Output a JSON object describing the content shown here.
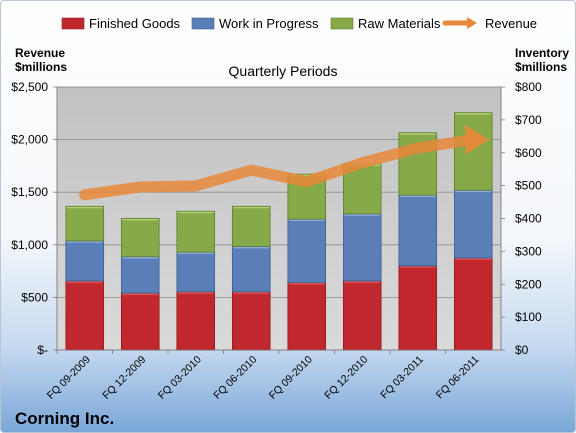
{
  "company": "Corning Inc.",
  "chart_data": {
    "type": "bar",
    "subtype": "stacked bar with line overlay",
    "title": "Quarterly Periods",
    "ylabel_left": [
      "Revenue",
      "$millions"
    ],
    "ylabel_right": [
      "Inventory",
      "$millions"
    ],
    "ylim_left": [
      0,
      2500
    ],
    "ylim_right": [
      0,
      800
    ],
    "yticks_left": [
      "$-",
      "$500",
      "$1,000",
      "$1,500",
      "$2,000",
      "$2,500"
    ],
    "yticks_right": [
      "$0",
      "$100",
      "$200",
      "$300",
      "$400",
      "$500",
      "$600",
      "$700",
      "$800"
    ],
    "grid": true,
    "legend_position": "top",
    "categories": [
      "FQ 09-2009",
      "FQ 12-2009",
      "FQ 03-2010",
      "FQ 06-2010",
      "FQ 09-2010",
      "FQ 12-2010",
      "FQ 03-2011",
      "FQ 06-2011"
    ],
    "series": [
      {
        "name": "Finished Goods",
        "axis": "right",
        "kind": "bar",
        "color": "#c0282d",
        "values": [
          210,
          173,
          177,
          177,
          205,
          210,
          256,
          280
        ]
      },
      {
        "name": "Work in Progress",
        "axis": "right",
        "kind": "bar",
        "color": "#5a7fb7",
        "values": [
          122,
          111,
          121,
          138,
          193,
          204,
          215,
          206
        ]
      },
      {
        "name": "Raw Materials",
        "axis": "right",
        "kind": "bar",
        "color": "#86a94a",
        "values": [
          105,
          116,
          124,
          122,
          137,
          152,
          190,
          236
        ]
      },
      {
        "name": "Revenue",
        "axis": "left",
        "kind": "line",
        "color": "#e8883a",
        "values": [
          1475,
          1550,
          1560,
          1710,
          1600,
          1780,
          1920,
          2000
        ]
      }
    ]
  }
}
